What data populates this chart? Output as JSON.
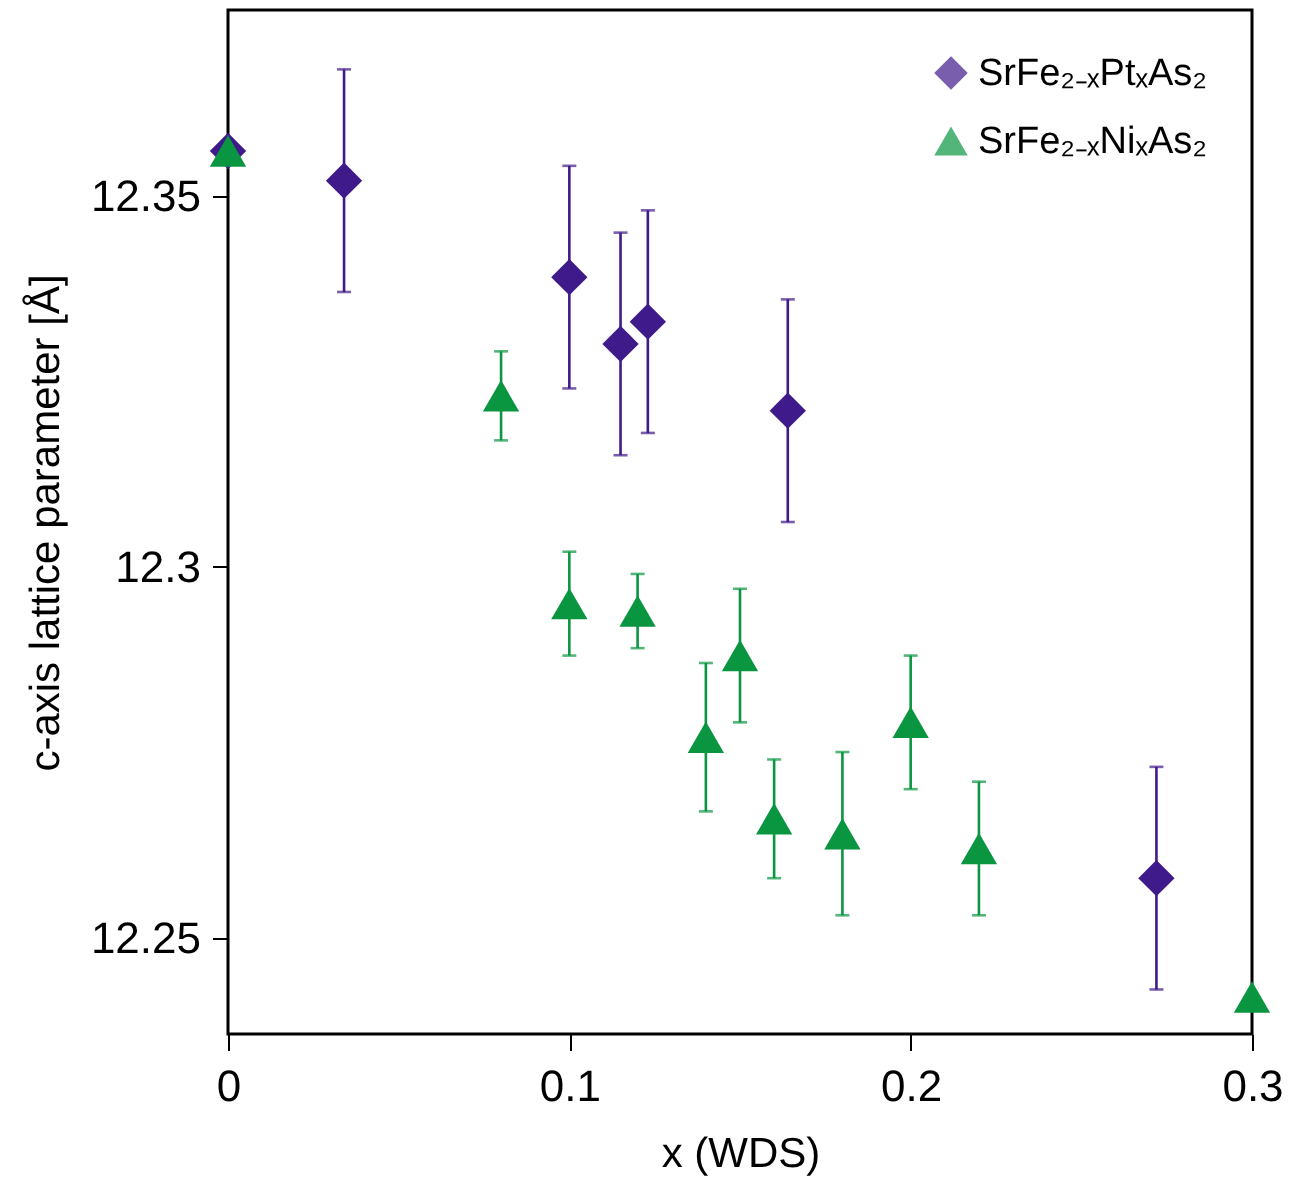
{
  "chart_data": {
    "type": "scatter",
    "xlabel": "x (WDS)",
    "ylabel": "c-axis lattice parameter [Å]",
    "xlim": [
      0,
      0.3
    ],
    "ylim": [
      12.237,
      12.375
    ],
    "xticks": [
      0,
      0.1,
      0.2,
      0.3
    ],
    "yticks": [
      12.25,
      12.3,
      12.35
    ],
    "legend": "top right",
    "grid": false,
    "series": [
      {
        "name": "SrFe₂₋ₓPtₓAs₂",
        "color": "#3f1a8a",
        "marker": "diamond",
        "x": [
          0,
          0.034,
          0.1,
          0.115,
          0.123,
          0.164,
          0.272
        ],
        "values": [
          12.356,
          12.352,
          12.339,
          12.33,
          12.333,
          12.321,
          12.258
        ],
        "errors": [
          null,
          0.015,
          0.015,
          0.015,
          0.015,
          0.015,
          0.015
        ]
      },
      {
        "name": "SrFe₂₋ₓNiₓAs₂",
        "color": "#0a9640",
        "marker": "triangle",
        "x": [
          0,
          0.08,
          0.1,
          0.12,
          0.14,
          0.15,
          0.16,
          0.18,
          0.2,
          0.22,
          0.3
        ],
        "values": [
          12.356,
          12.323,
          12.295,
          12.294,
          12.277,
          12.288,
          12.266,
          12.264,
          12.279,
          12.262,
          12.242
        ],
        "errors": [
          null,
          0.006,
          0.007,
          0.005,
          0.01,
          0.009,
          0.008,
          0.011,
          0.009,
          0.009,
          null
        ]
      }
    ]
  }
}
